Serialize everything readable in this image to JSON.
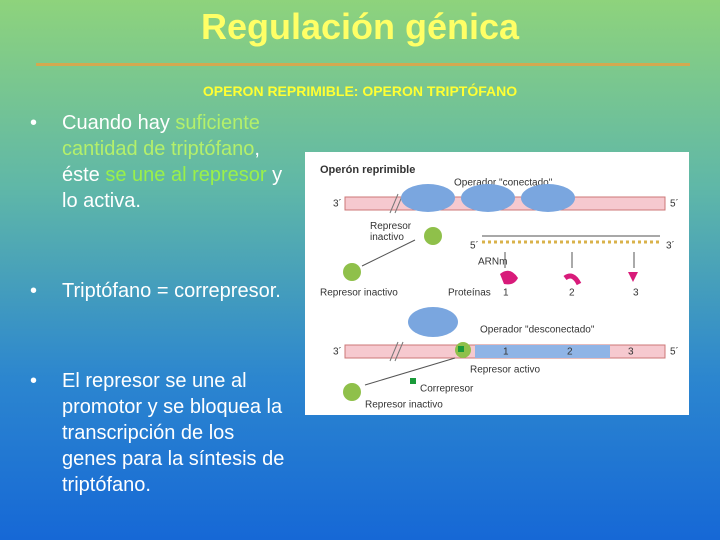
{
  "header": {
    "title": "Regulación génica",
    "subtitle": "OPERON REPRIMIBLE: OPERON TRIPTÓFANO"
  },
  "bullets": [
    [
      "Cuando hay ",
      "suficiente cantidad de triptófano",
      ", éste ",
      "se une al represor",
      " y lo activa."
    ],
    [
      "Triptófano = correpresor."
    ],
    [
      "El represor se une al promotor y se bloquea la transcripción de los genes para la síntesis de triptófano."
    ]
  ],
  "figure": {
    "heading": "Operón reprimible",
    "operator_on": "Operador \"conectado\"",
    "operator_off": "Operador \"desconectado\"",
    "end_3": "3´",
    "end_5": "5´",
    "inactive_repressor_top": "Represor inactivo",
    "inactive_repressor_left": "Represor inactivo",
    "inactive_repressor_bottom": "Represor inactivo",
    "mrna": "ARNm",
    "proteins": "Proteínas",
    "genes": [
      "1",
      "2",
      "3"
    ],
    "active_repressor": "Represor activo",
    "corepressor": "Correpresor"
  }
}
